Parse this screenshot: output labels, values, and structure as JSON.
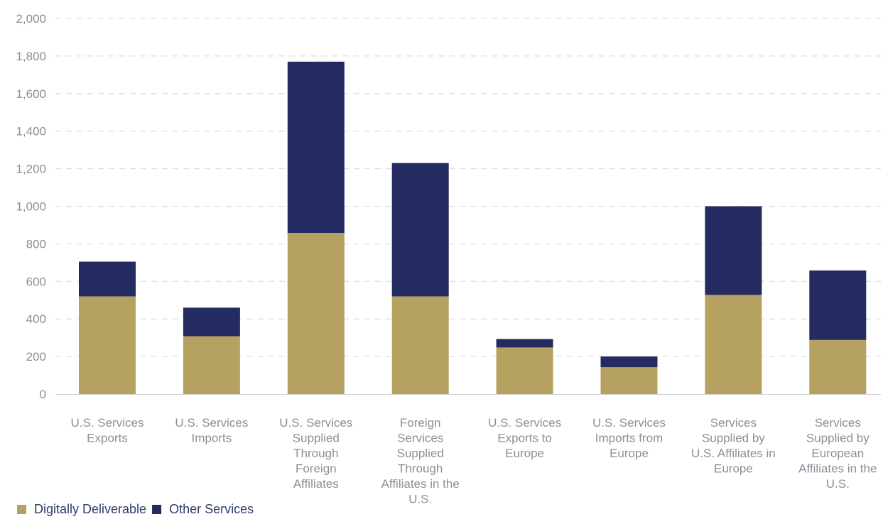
{
  "chart_data": {
    "type": "bar",
    "stacked": true,
    "title": "",
    "xlabel": "",
    "ylabel": "",
    "ylim": [
      0,
      2000
    ],
    "yticks": [
      0,
      200,
      400,
      600,
      800,
      1000,
      1200,
      1400,
      1600,
      1800,
      2000
    ],
    "ytick_labels": [
      "0",
      "200",
      "400",
      "600",
      "800",
      "1,000",
      "1,200",
      "1,400",
      "1,600",
      "1,800",
      "2,000"
    ],
    "grid": true,
    "legend_position": "bottom-left",
    "categories": [
      [
        "U.S. Services",
        "Exports"
      ],
      [
        "U.S. Services",
        "Imports"
      ],
      [
        "U.S. Services",
        "Supplied",
        "Through",
        "Foreign",
        "Affiliates"
      ],
      [
        "Foreign",
        "Services",
        "Supplied",
        "Through",
        "Affiliates in the",
        "U.S."
      ],
      [
        "U.S. Services",
        "Exports to",
        "Europe"
      ],
      [
        "U.S. Services",
        "Imports from",
        "Europe"
      ],
      [
        "Services",
        "Supplied by",
        "U.S. Affiliates in",
        "Europe"
      ],
      [
        "Services",
        "Supplied by",
        "European",
        "Affiliates in the",
        "U.S."
      ]
    ],
    "series": [
      {
        "name": "Digitally Deliverable",
        "color": "#b5a160",
        "values": [
          520,
          308,
          858,
          520,
          248,
          143,
          528,
          288
        ]
      },
      {
        "name": "Other Services",
        "color": "#232b60",
        "values": [
          185,
          152,
          912,
          710,
          45,
          57,
          472,
          370
        ]
      }
    ]
  }
}
